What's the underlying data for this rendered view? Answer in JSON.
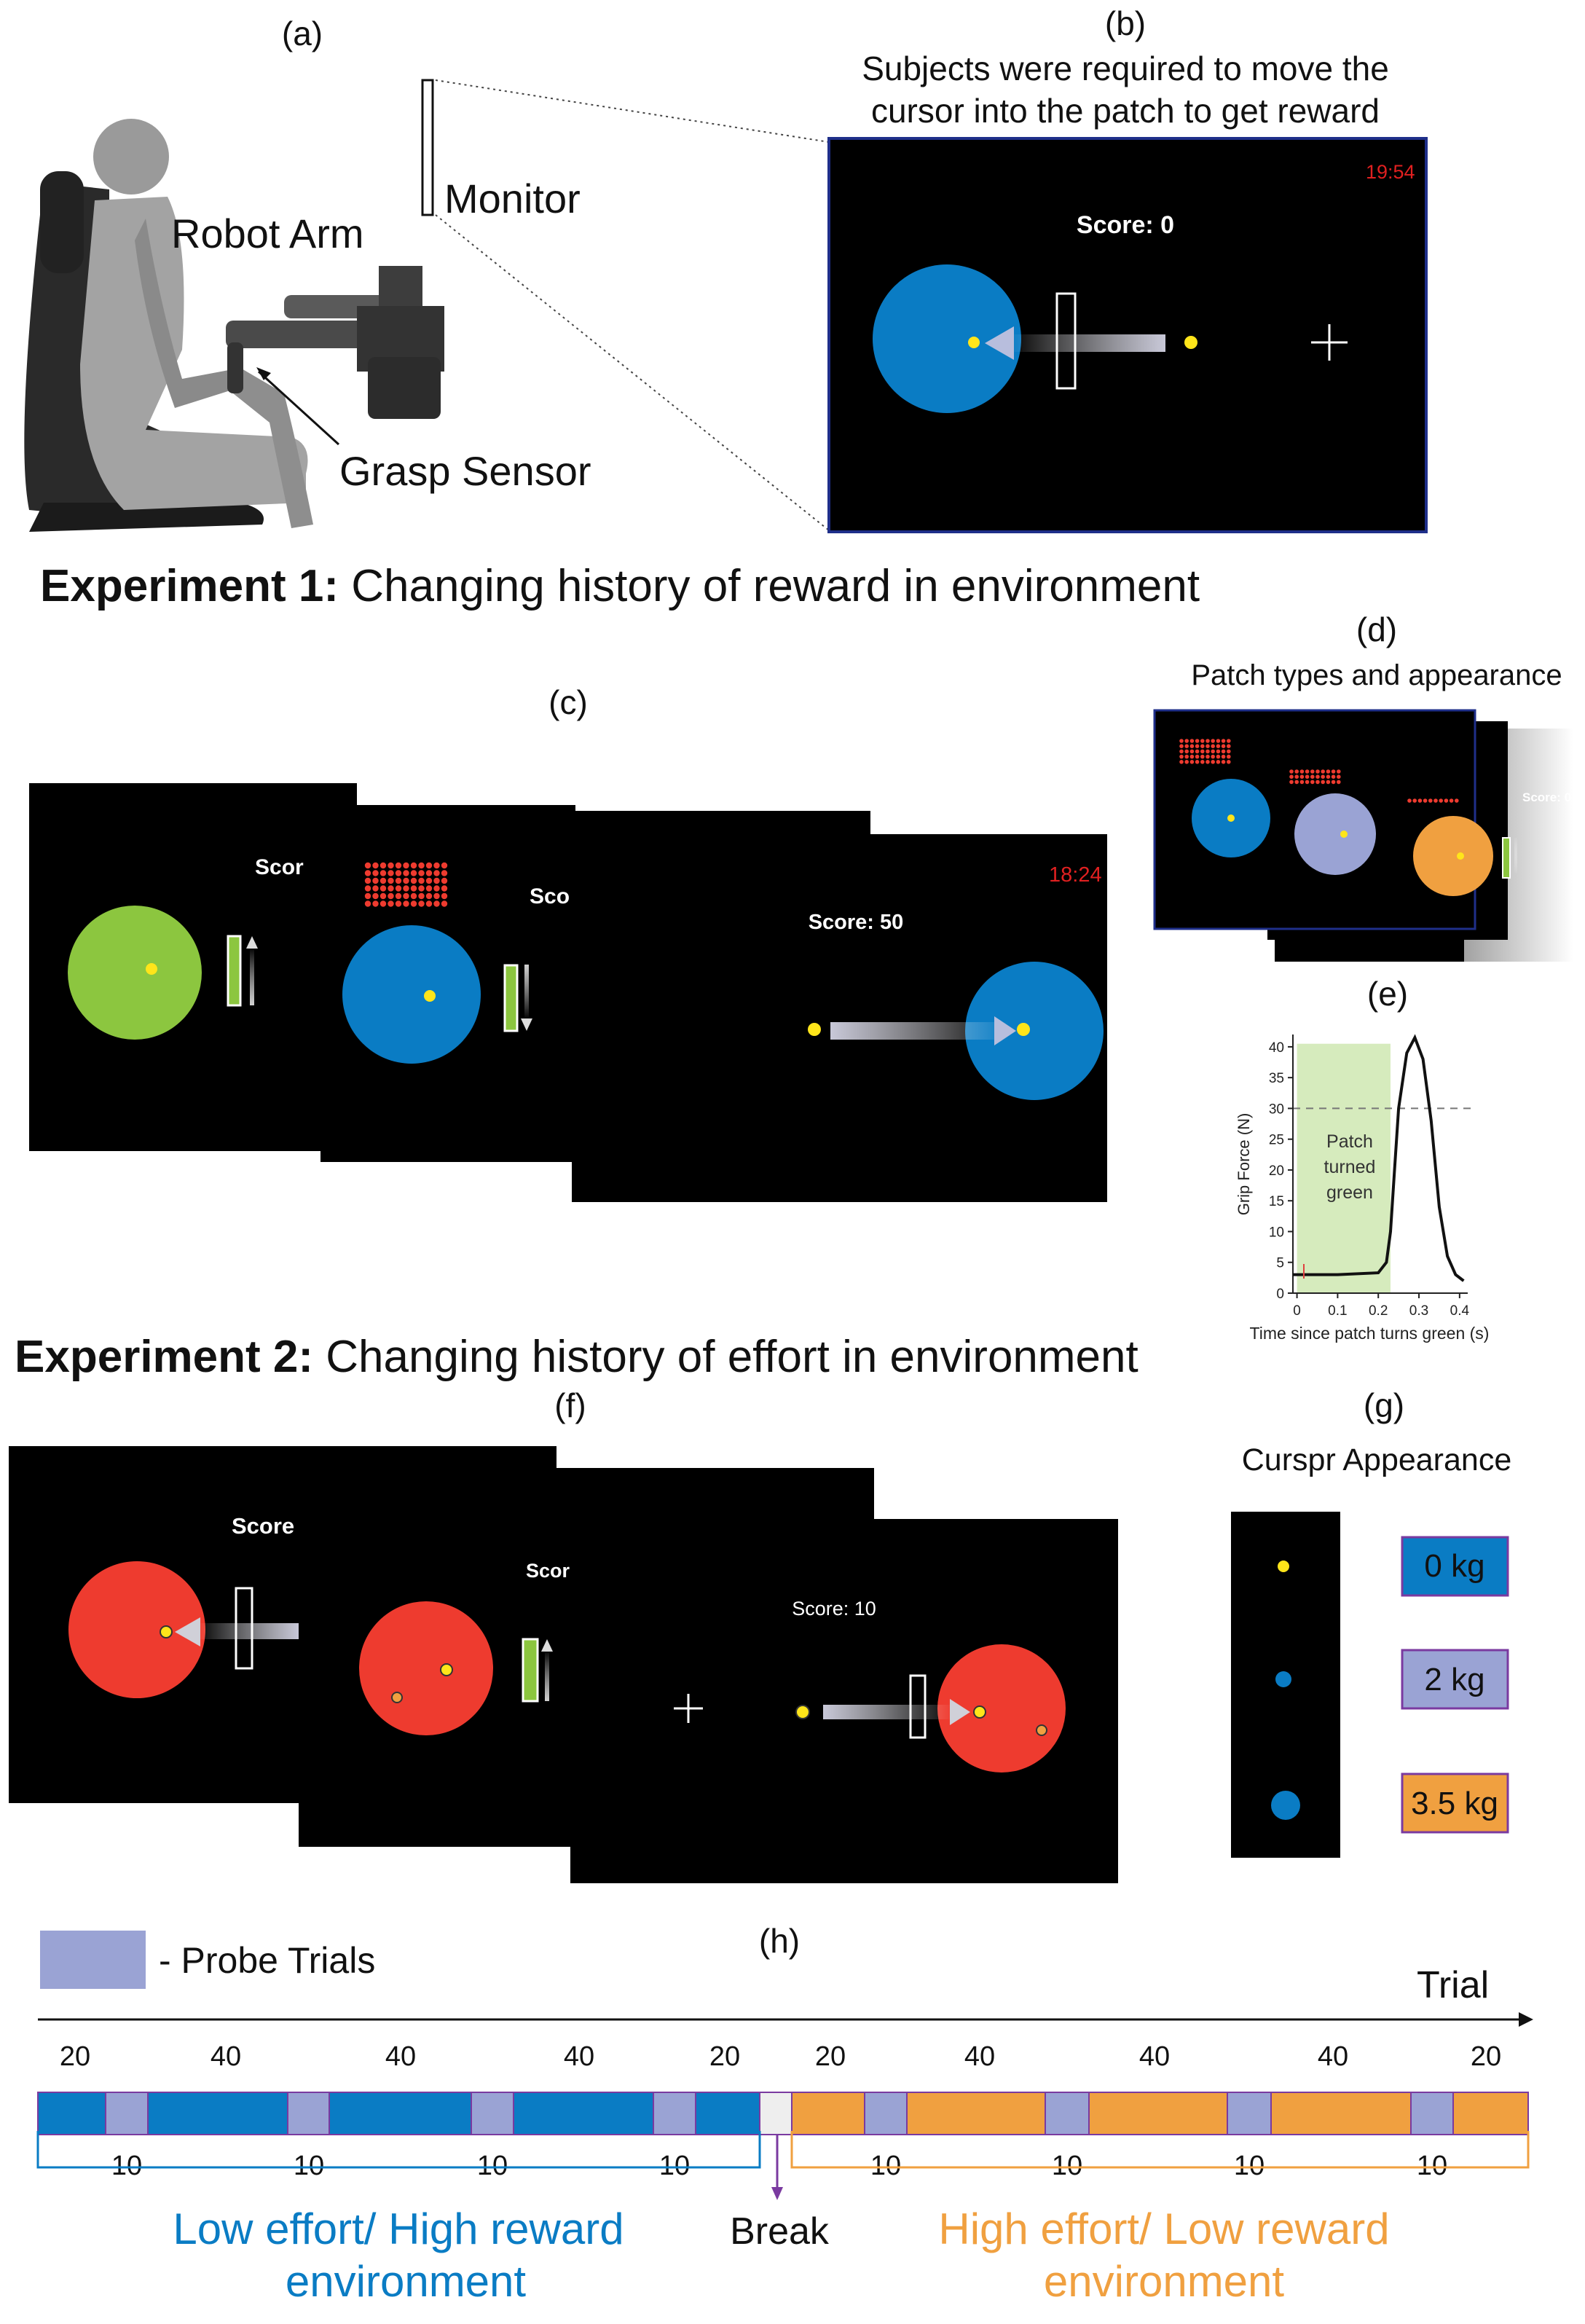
{
  "panel_labels": {
    "a": "(a)",
    "b": "(b)",
    "c": "(c)",
    "d": "(d)",
    "e": "(e)",
    "f": "(f)",
    "g": "(g)",
    "h": "(h)"
  },
  "panel_a": {
    "robot_arm": "Robot Arm",
    "monitor": "Monitor",
    "grasp_sensor": "Grasp Sensor"
  },
  "panel_b": {
    "caption_1": "Subjects were required to move the",
    "caption_2": "cursor into the patch to get reward",
    "timer": "19:54",
    "score": "Score: 0"
  },
  "exp1": {
    "bold": "Experiment 1:",
    "rest": " Changing history of reward in environment"
  },
  "exp2": {
    "bold": "Experiment 2:",
    "rest": " Changing history of effort in environment"
  },
  "panel_c": {
    "score_cut_1": "Scor",
    "score_cut_2": "Sco",
    "timer": "18:24",
    "score": "Score: 50"
  },
  "panel_d": {
    "title": "Patch types and appearance",
    "score": "Score: 0"
  },
  "panel_e": {
    "ylabel": "Grip Force (N)",
    "xlabel": "Time since patch turns green (s)",
    "annotation_1": "Patch",
    "annotation_2": "turned",
    "annotation_3": "green",
    "yticks": [
      "0",
      "5",
      "10",
      "15",
      "20",
      "25",
      "30",
      "35",
      "40"
    ],
    "xticks": [
      "0",
      "0.1",
      "0.2",
      "0.3",
      "0.4"
    ]
  },
  "panel_f": {
    "score_cut_1": "Score",
    "score_cut_2": "Scor",
    "score": "Score: 10"
  },
  "panel_g": {
    "title": "Curspr Appearance",
    "kg0": "0 kg",
    "kg2": "2 kg",
    "kg35": "3.5 kg"
  },
  "panel_h": {
    "legend": "- Probe Trials",
    "trial": "Trial",
    "counts": [
      "20",
      "40",
      "40",
      "40",
      "20",
      "20",
      "40",
      "40",
      "40",
      "20"
    ],
    "probe_counts": [
      "10",
      "10",
      "10",
      "10",
      "10",
      "10",
      "10",
      "10"
    ],
    "break": "Break",
    "low_env_1": "Low effort/ High reward",
    "low_env_2": "environment",
    "high_env_1": "High effort/ Low reward",
    "high_env_2": "environment"
  },
  "colors": {
    "blue": "#0a7cc4",
    "probe": "#9aa3d4",
    "orange": "#f0a040",
    "green": "#8cc63f",
    "red": "#ee3b2f",
    "timer_red": "#e02020",
    "yellow": "#ffe51a"
  },
  "chart_data": {
    "type": "line",
    "title": "",
    "xlabel": "Time since patch turns green (s)",
    "ylabel": "Grip Force (N)",
    "xlim": [
      -0.01,
      0.42
    ],
    "ylim": [
      0,
      42
    ],
    "threshold": 30,
    "green_window": [
      0,
      0.23
    ],
    "series": [
      {
        "x": [
          -0.01,
          0.0,
          0.1,
          0.2,
          0.22,
          0.23,
          0.24,
          0.25,
          0.27,
          0.29,
          0.31,
          0.33,
          0.35,
          0.37,
          0.39,
          0.41
        ],
        "y": [
          3,
          3,
          3,
          3.3,
          5,
          10,
          20,
          30,
          39,
          41.5,
          38,
          28,
          14,
          6,
          3,
          2
        ]
      }
    ]
  }
}
